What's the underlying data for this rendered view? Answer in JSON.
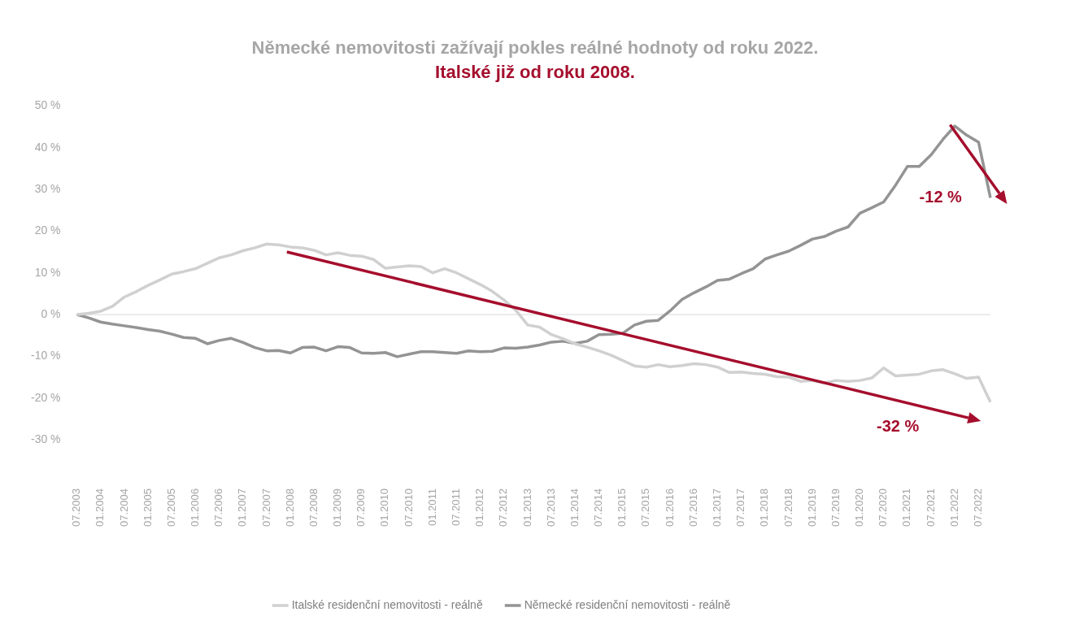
{
  "chart_data": {
    "type": "line",
    "title": "Německé nemovitosti zažívají pokles reálné hodnoty od roku 2022.",
    "subtitle": "Italské již od roku 2008.",
    "categories": [
      "07.2003",
      null,
      "01.2004",
      null,
      "07.2004",
      null,
      "01.2005",
      null,
      "07.2005",
      null,
      "01.2006",
      null,
      "07.2006",
      null,
      "01.2007",
      null,
      "07.2007",
      null,
      "01.2008",
      null,
      "07.2008",
      null,
      "01.2009",
      null,
      "07.2009",
      null,
      "01.2010",
      null,
      "07.2010",
      null,
      "01.2011",
      null,
      "07.2011",
      null,
      "01.2012",
      null,
      "07.2012",
      null,
      "01.2013",
      null,
      "07.2013",
      null,
      "01.2014",
      null,
      "07.2014",
      null,
      "01.2015",
      null,
      "07.2015",
      null,
      "01.2016",
      null,
      "07.2016",
      null,
      "01.2017",
      null,
      "07.2017",
      null,
      "01.2018",
      null,
      "07.2018",
      null,
      "01.2019",
      null,
      "07.2019",
      null,
      "01.2020",
      null,
      "07.2020",
      null,
      "01.2021",
      null,
      "07.2021",
      null,
      "01.2022",
      null,
      "07.2022",
      null
    ],
    "series": [
      {
        "name": "Italské residenční nemovitosti - reálně",
        "color": "#d0d0d0",
        "values": [
          0,
          0.3,
          0.8,
          2,
          4.2,
          5.5,
          7,
          8.3,
          9.7,
          10.3,
          11,
          12.3,
          13.6,
          14.3,
          15.3,
          16,
          16.9,
          16.7,
          16.2,
          16,
          15.4,
          14.3,
          14.8,
          14.2,
          14,
          13.2,
          11.1,
          11.4,
          11.7,
          11.5,
          10,
          11,
          10,
          8.6,
          7.2,
          5.6,
          3.5,
          1,
          -2.5,
          -3,
          -4.8,
          -5.8,
          -7,
          -7.8,
          -8.7,
          -9.7,
          -11,
          -12.3,
          -12.6,
          -12,
          -12.5,
          -12.2,
          -11.8,
          -12,
          -12.6,
          -13.9,
          -13.8,
          -14.1,
          -14.3,
          -14.9,
          -15,
          -16,
          -15.8,
          -16.4,
          -15.8,
          -16,
          -15.8,
          -15.2,
          -12.8,
          -14.7,
          -14.5,
          -14.3,
          -13.5,
          -13.2,
          -14.2,
          -15.3,
          -15,
          -21
        ]
      },
      {
        "name": "Německé residenční nemovitosti - reálně",
        "color": "#949494",
        "values": [
          0,
          -0.8,
          -1.8,
          -2.3,
          -2.7,
          -3.1,
          -3.6,
          -4,
          -4.7,
          -5.5,
          -5.7,
          -7,
          -6.2,
          -5.7,
          -6.7,
          -7.9,
          -8.7,
          -8.6,
          -9.2,
          -7.9,
          -7.8,
          -8.7,
          -7.7,
          -7.9,
          -9.2,
          -9.3,
          -9.1,
          -10.1,
          -9.5,
          -8.9,
          -8.9,
          -9.1,
          -9.3,
          -8.7,
          -8.9,
          -8.8,
          -8,
          -8.1,
          -7.8,
          -7.3,
          -6.6,
          -6.4,
          -6.9,
          -6.4,
          -4.8,
          -4.7,
          -4.5,
          -2.5,
          -1.6,
          -1.4,
          0.9,
          3.6,
          5.2,
          6.6,
          8.2,
          8.5,
          9.8,
          11,
          13.3,
          14.3,
          15.2,
          16.6,
          18.1,
          18.7,
          20,
          21,
          24.3,
          25.6,
          27,
          31,
          35.5,
          35.5,
          38.3,
          42,
          45.2,
          43,
          41.3,
          28
        ]
      }
    ],
    "ylim": [
      -30,
      50
    ],
    "yticks": [
      {
        "value": -30,
        "label": "-30 %"
      },
      {
        "value": -20,
        "label": "-20 %"
      },
      {
        "value": -10,
        "label": "-10 %"
      },
      {
        "value": 0,
        "label": "0 %"
      },
      {
        "value": 10,
        "label": "10 %"
      },
      {
        "value": 20,
        "label": "20 %"
      },
      {
        "value": 30,
        "label": "30 %"
      },
      {
        "value": 40,
        "label": "40 %"
      },
      {
        "value": 50,
        "label": "50 %"
      }
    ],
    "ref_lines": [
      {
        "axis": "y",
        "value": 0,
        "color": "#d9d9d9"
      }
    ],
    "annotations": [
      "-12 %",
      "-32 %"
    ],
    "grid": false,
    "legend": "bottom",
    "marker": "none",
    "line_style": "solid"
  }
}
